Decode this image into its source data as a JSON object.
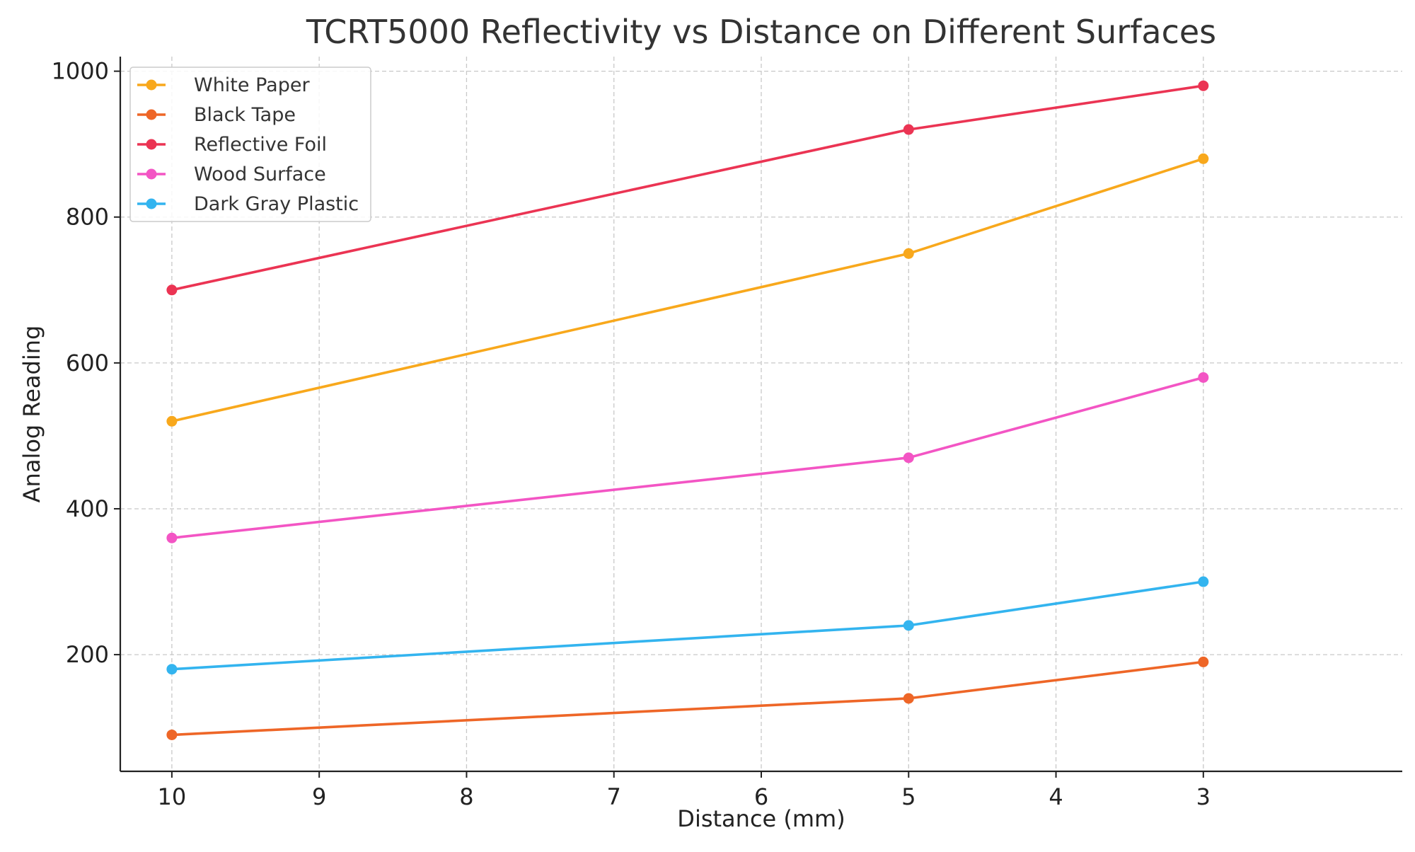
{
  "chart_data": {
    "type": "line",
    "title": "TCRT5000 Reflectivity vs Distance on Different Surfaces",
    "xlabel": "Distance (mm)",
    "ylabel": "Analog Reading",
    "x": [
      10,
      5,
      3
    ],
    "xlim": [
      10.35,
      1.65
    ],
    "x_inverted": true,
    "xticks": [
      10,
      9,
      8,
      7,
      6,
      5,
      4,
      3
    ],
    "ylim": [
      40,
      1020
    ],
    "yticks": [
      200,
      400,
      600,
      800,
      1000
    ],
    "grid": true,
    "legend_position": "top-left",
    "series": [
      {
        "name": "White Paper",
        "color": "#f8a81c",
        "values": [
          520,
          750,
          880
        ]
      },
      {
        "name": "Black Tape",
        "color": "#ee6627",
        "values": [
          90,
          140,
          190
        ]
      },
      {
        "name": "Reflective Foil",
        "color": "#eb3453",
        "values": [
          700,
          920,
          980
        ]
      },
      {
        "name": "Wood Surface",
        "color": "#f355c4",
        "values": [
          360,
          470,
          580
        ]
      },
      {
        "name": "Dark Gray Plastic",
        "color": "#33b4ef",
        "values": [
          180,
          240,
          300
        ]
      }
    ]
  }
}
